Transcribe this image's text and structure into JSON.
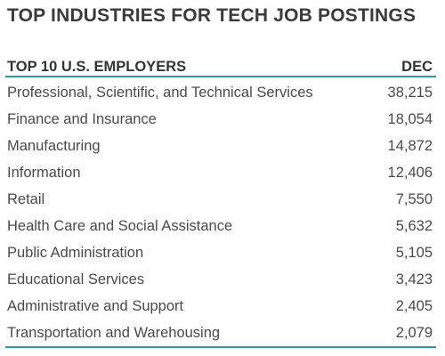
{
  "title": "TOP INDUSTRIES FOR TECH JOB POSTINGS",
  "colors": {
    "rule": "#2e9aa3",
    "text": "#4a4a4a",
    "title": "#3b3b3b"
  },
  "chart_data": {
    "type": "table",
    "title": "TOP INDUSTRIES FOR TECH JOB POSTINGS",
    "columns": [
      "TOP 10 U.S. EMPLOYERS",
      "DEC"
    ],
    "rows": [
      {
        "industry": "Professional, Scientific, and Technical Services",
        "value": "38,215"
      },
      {
        "industry": "Finance and Insurance",
        "value": "18,054"
      },
      {
        "industry": "Manufacturing",
        "value": "14,872"
      },
      {
        "industry": "Information",
        "value": "12,406"
      },
      {
        "industry": "Retail",
        "value": "7,550"
      },
      {
        "industry": "Health Care and Social Assistance",
        "value": "5,632"
      },
      {
        "industry": "Public Administration",
        "value": "5,105"
      },
      {
        "industry": "Educational Services",
        "value": "3,423"
      },
      {
        "industry": "Administrative and Support",
        "value": "2,405"
      },
      {
        "industry": "Transportation and Warehousing",
        "value": "2,079"
      }
    ]
  }
}
